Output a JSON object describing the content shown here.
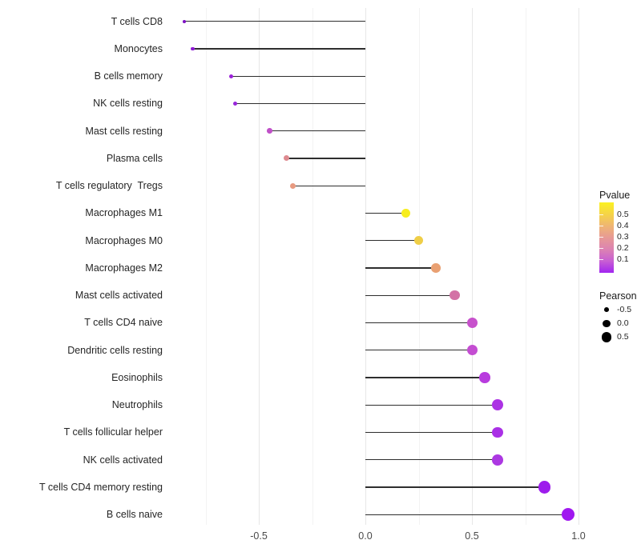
{
  "chart_data": {
    "type": "lollipop",
    "orientation": "horizontal",
    "title": "",
    "xlabel": "",
    "ylabel": "",
    "xlim": [
      -0.91,
      1.05
    ],
    "baseline": 0,
    "grid": true,
    "x_ticks": [
      {
        "value": -0.5,
        "label": "-0.5"
      },
      {
        "value": 0.0,
        "label": "0.0"
      },
      {
        "value": 0.5,
        "label": "0.5"
      },
      {
        "value": 1.0,
        "label": "1.0"
      }
    ],
    "minor_gridline_values": [
      -0.75,
      -0.25,
      0.25,
      0.75
    ],
    "points": [
      {
        "category": "T cells CD8",
        "pearson": -0.85,
        "pvalue_approx": 0.01,
        "color": "#7E12C4"
      },
      {
        "category": "Monocytes",
        "pearson": -0.81,
        "pvalue_approx": 0.02,
        "color": "#8D1AD4"
      },
      {
        "category": "B cells memory",
        "pearson": -0.63,
        "pvalue_approx": 0.04,
        "color": "#9B22D8"
      },
      {
        "category": "NK cells resting",
        "pearson": -0.61,
        "pvalue_approx": 0.05,
        "color": "#9826DA"
      },
      {
        "category": "Mast cells resting",
        "pearson": -0.45,
        "pvalue_approx": 0.12,
        "color": "#C050C8"
      },
      {
        "category": "Plasma cells",
        "pearson": -0.37,
        "pvalue_approx": 0.3,
        "color": "#DE8A90"
      },
      {
        "category": "T cells regulatory  Tregs",
        "pearson": -0.34,
        "pvalue_approx": 0.33,
        "color": "#E89A80"
      },
      {
        "category": "Macrophages M1",
        "pearson": 0.19,
        "pvalue_approx": 0.55,
        "color": "#F7ED1E"
      },
      {
        "category": "Macrophages M0",
        "pearson": 0.25,
        "pvalue_approx": 0.45,
        "color": "#EFCE47"
      },
      {
        "category": "Macrophages M2",
        "pearson": 0.33,
        "pvalue_approx": 0.35,
        "color": "#E9A072"
      },
      {
        "category": "Mast cells activated",
        "pearson": 0.42,
        "pvalue_approx": 0.25,
        "color": "#D372A6"
      },
      {
        "category": "T cells CD4 naive",
        "pearson": 0.5,
        "pvalue_approx": 0.17,
        "color": "#C751CC"
      },
      {
        "category": "Dendritic cells resting",
        "pearson": 0.5,
        "pvalue_approx": 0.16,
        "color": "#C44DD2"
      },
      {
        "category": "Eosinophils",
        "pearson": 0.56,
        "pvalue_approx": 0.12,
        "color": "#B83CDE"
      },
      {
        "category": "Neutrophils",
        "pearson": 0.62,
        "pvalue_approx": 0.09,
        "color": "#AC32E4"
      },
      {
        "category": "T cells follicular helper",
        "pearson": 0.62,
        "pvalue_approx": 0.09,
        "color": "#AA30E6"
      },
      {
        "category": "NK cells activated",
        "pearson": 0.62,
        "pvalue_approx": 0.09,
        "color": "#AC38E2"
      },
      {
        "category": "T cells CD4 memory resting",
        "pearson": 0.84,
        "pvalue_approx": 0.03,
        "color": "#9D1CEC"
      },
      {
        "category": "B cells naive",
        "pearson": 0.95,
        "pvalue_approx": 0.02,
        "color": "#A018F0"
      }
    ],
    "legend_position": "right"
  },
  "legend": {
    "pvalue": {
      "title": "Pvalue",
      "gradient_stops_bottom_to_top": [
        "#A125F0",
        "#C85FD3",
        "#DC83B2",
        "#E79A95",
        "#EFB573",
        "#F5D447",
        "#FBF122"
      ],
      "ticks": [
        {
          "label": "0.5"
        },
        {
          "label": "0.4"
        },
        {
          "label": "0.3"
        },
        {
          "label": "0.2"
        },
        {
          "label": "0.1"
        }
      ]
    },
    "pearson": {
      "title": "Pearson",
      "items": [
        {
          "label": "-0.5",
          "value": -0.5
        },
        {
          "label": "0.0",
          "value": 0.0
        },
        {
          "label": "0.5",
          "value": 0.5
        }
      ]
    }
  },
  "colors": {
    "stem": "#2e2e2e",
    "major_grid": "#e7e7e7",
    "minor_grid": "#f3f3f3",
    "axis_text": "#4a4a4a",
    "category_text": "#262626",
    "legend_dot": "#000000",
    "background": "#ffffff"
  }
}
